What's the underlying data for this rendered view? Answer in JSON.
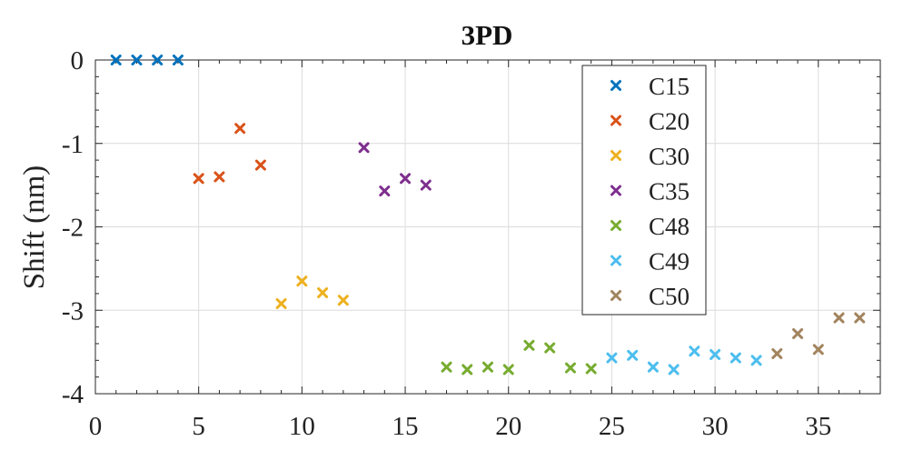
{
  "chart_data": {
    "type": "scatter",
    "title": "3PD",
    "xlabel": "",
    "ylabel": "Shift (nm)",
    "xlim": [
      0,
      38
    ],
    "ylim": [
      -4,
      0
    ],
    "xticks": [
      0,
      5,
      10,
      15,
      20,
      25,
      30,
      35
    ],
    "yticks": [
      0,
      -1,
      -2,
      -3,
      -4
    ],
    "grid": true,
    "legend_position": "top-right",
    "marker": "x",
    "series": [
      {
        "name": "C15",
        "color": "#0072BD",
        "x": [
          1,
          2,
          3,
          4
        ],
        "y": [
          0.0,
          0.0,
          0.0,
          0.0
        ]
      },
      {
        "name": "C20",
        "color": "#D95319",
        "x": [
          5,
          6,
          7,
          8
        ],
        "y": [
          -1.42,
          -1.4,
          -0.82,
          -1.26
        ]
      },
      {
        "name": "C30",
        "color": "#EDB120",
        "x": [
          9,
          10,
          11,
          12
        ],
        "y": [
          -2.92,
          -2.65,
          -2.79,
          -2.88
        ]
      },
      {
        "name": "C35",
        "color": "#7E2F8E",
        "x": [
          13,
          14,
          15,
          16
        ],
        "y": [
          -1.05,
          -1.57,
          -1.42,
          -1.5
        ]
      },
      {
        "name": "C48",
        "color": "#77AC30",
        "x": [
          17,
          18,
          19,
          20,
          21,
          22,
          23,
          24
        ],
        "y": [
          -3.68,
          -3.71,
          -3.68,
          -3.71,
          -3.42,
          -3.45,
          -3.69,
          -3.7
        ]
      },
      {
        "name": "C49",
        "color": "#4DBEEE",
        "x": [
          25,
          26,
          27,
          28,
          29,
          30,
          31,
          32
        ],
        "y": [
          -3.57,
          -3.54,
          -3.68,
          -3.71,
          -3.49,
          -3.53,
          -3.57,
          -3.6
        ]
      },
      {
        "name": "C50",
        "color": "#A2845E",
        "x": [
          33,
          34,
          35,
          36,
          37
        ],
        "y": [
          -3.52,
          -3.28,
          -3.47,
          -3.09,
          -3.09
        ]
      }
    ]
  }
}
